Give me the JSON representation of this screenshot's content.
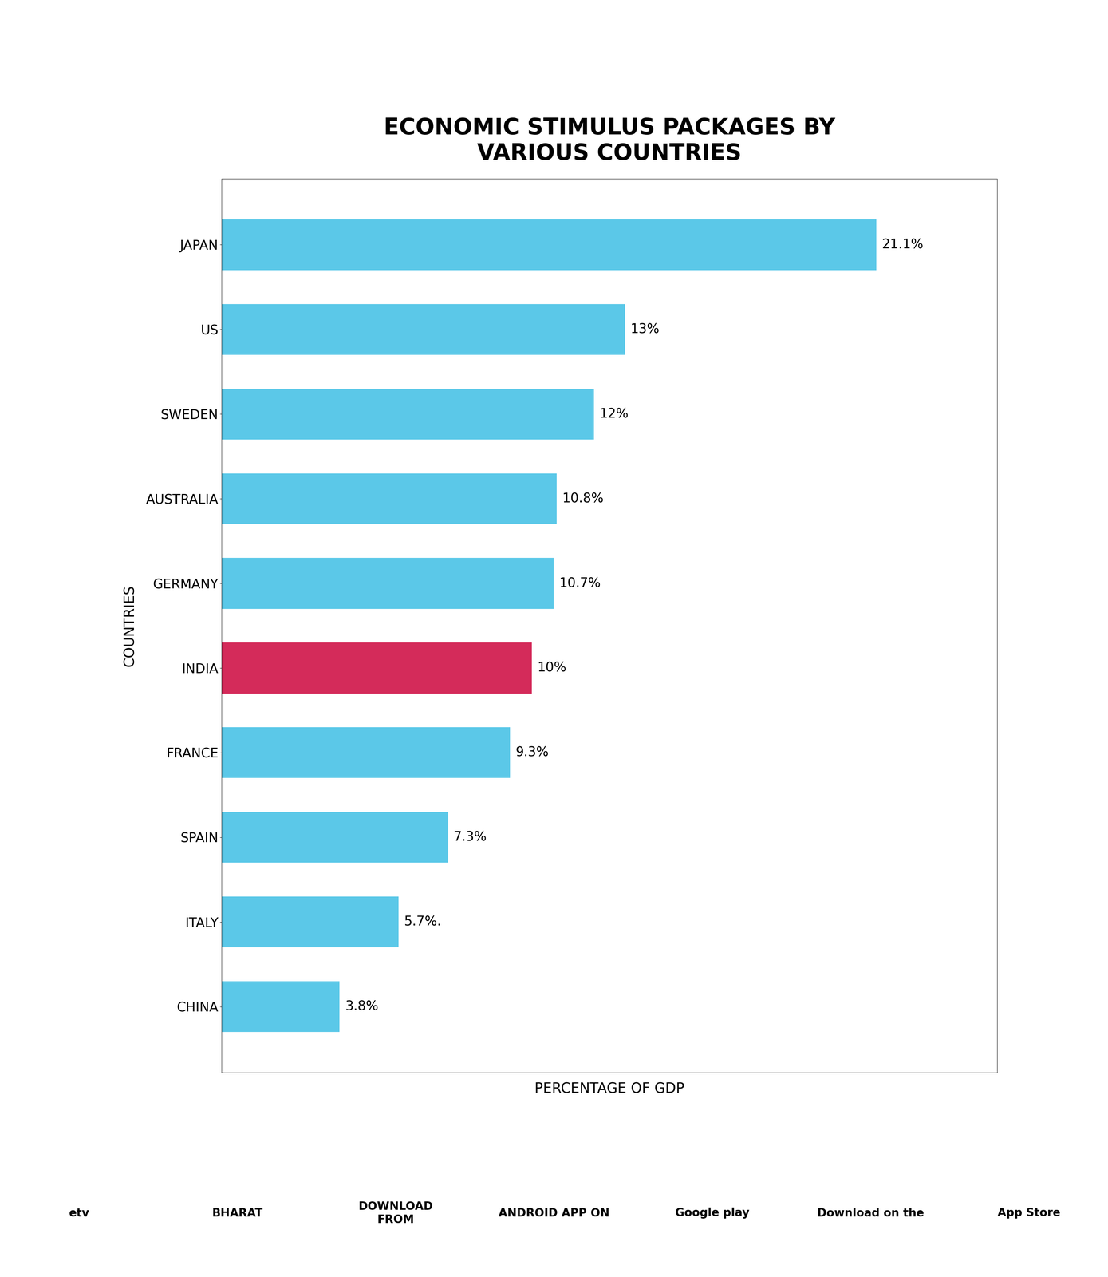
{
  "chart_data": {
    "type": "bar",
    "orientation": "horizontal",
    "title": "ECONOMIC STIMULUS PACKAGES BY\nVARIOUS COUNTRIES",
    "xlabel": "PERCENTAGE OF GDP",
    "ylabel": "COUNTRIES",
    "categories": [
      "JAPAN",
      "US",
      "SWEDEN",
      "AUSTRALIA",
      "GERMANY",
      "INDIA",
      "FRANCE",
      "SPAIN",
      "ITALY",
      "CHINA"
    ],
    "values": [
      21.1,
      13.0,
      12.0,
      10.8,
      10.7,
      10.0,
      9.3,
      7.3,
      5.7,
      3.8
    ],
    "value_labels": [
      "21.1%",
      "13%",
      "12%",
      "10.8%",
      "10.7%",
      "10%",
      "9.3%",
      "7.3%",
      "5.7%.",
      "3.8%"
    ],
    "data_labels": true,
    "colors": [
      "#5bc8e8",
      "#5bc8e8",
      "#5bc8e8",
      "#5bc8e8",
      "#5bc8e8",
      "#d42b5a",
      "#5bc8e8",
      "#5bc8e8",
      "#5bc8e8",
      "#5bc8e8"
    ],
    "xlim": [
      0,
      25
    ],
    "xticks": [],
    "tick_labels": "y",
    "grid": false,
    "annotations": [
      "etv",
      "BHARAT",
      "DOWNLOAD\nFROM",
      "ANDROID APP ON",
      "Google play",
      "Download on the",
      "App Store"
    ]
  }
}
